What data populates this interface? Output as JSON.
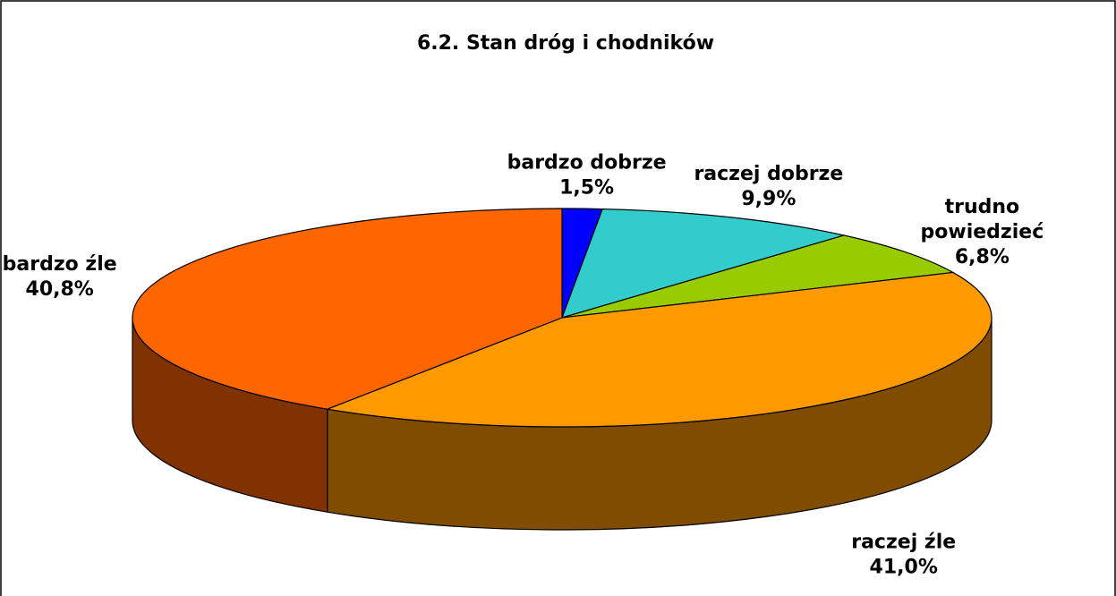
{
  "chart_data": {
    "type": "pie3d",
    "title": "6.2. Stan dróg i chodników",
    "categories": [
      "bardzo dobrze",
      "raczej dobrze",
      "trudno powiedzieć",
      "raczej źle",
      "bardzo źle"
    ],
    "values": [
      1.5,
      9.9,
      6.8,
      41.0,
      40.8
    ],
    "value_labels": [
      "1,5%",
      "9,9%",
      "6,8%",
      "41,0%",
      "40,8%"
    ],
    "colors": [
      "#0000ff",
      "#33cccc",
      "#99cc00",
      "#ff9900",
      "#ff6600"
    ]
  }
}
